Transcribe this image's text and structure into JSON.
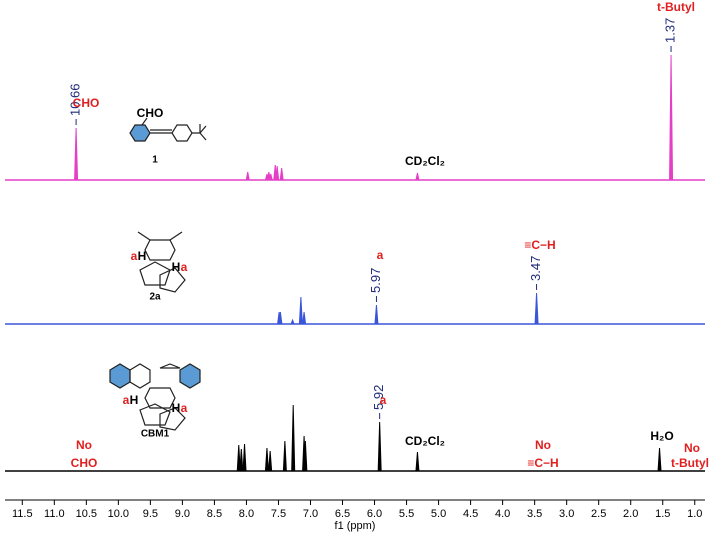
{
  "chart_data": {
    "type": "nmr",
    "xlabel": "f1 (ppm)",
    "xlim": [
      11.77,
      0.84
    ],
    "xticks": [
      11.5,
      {
        "value": 11,
        "label": "11.0"
      },
      10.5,
      {
        "value": 10,
        "label": "10.0"
      },
      9.5,
      {
        "value": 9,
        "label": "9.0"
      },
      8.5,
      {
        "value": 8,
        "label": "8.0"
      },
      7.5,
      {
        "value": 7,
        "label": "7.0"
      },
      6.5,
      {
        "value": 6,
        "label": "6.0"
      },
      5.5,
      {
        "value": 5,
        "label": "5.0"
      },
      4.5,
      {
        "value": 4,
        "label": "4.0"
      },
      3.5,
      {
        "value": 3,
        "label": "3.0"
      },
      2.5,
      {
        "value": 2,
        "label": "2.0"
      },
      1.5,
      {
        "value": 1,
        "label": "1.0"
      }
    ],
    "series": [
      {
        "name": "1",
        "color": "#e43fc6",
        "x": [
          10.66,
          7.98,
          7.68,
          7.65,
          7.62,
          7.55,
          7.52,
          7.45,
          5.33,
          1.37
        ],
        "values": [
          52,
          8,
          6,
          8,
          6,
          15,
          14,
          12,
          7,
          125
        ],
        "peak_labels": [
          10.66,
          1.37
        ],
        "annotations": [
          {
            "text": "CHO",
            "color": "#e02020"
          },
          {
            "text": "t-Butyl",
            "color": "#e02020"
          },
          {
            "text": "CD₂Cl₂",
            "color": "#000000"
          },
          {
            "text": "CHO",
            "color": "#000000"
          }
        ]
      },
      {
        "name": "2a",
        "color": "#3b55d9",
        "x": [
          7.49,
          7.47,
          7.28,
          7.15,
          7.1,
          5.97,
          3.47
        ],
        "values": [
          12,
          12,
          4,
          27,
          12,
          19,
          31
        ],
        "peak_labels": [
          5.97,
          3.47
        ],
        "annotations": [
          {
            "text": "a",
            "color": "#e02020"
          },
          {
            "text": "≡C−H",
            "color": "#e02020"
          },
          {
            "text": "a",
            "color": "#e02020"
          },
          {
            "text": "H",
            "color": "#000000"
          },
          {
            "text": "H",
            "color": "#000000"
          },
          {
            "text": "a",
            "color": "#e02020"
          }
        ]
      },
      {
        "name": "CBM1",
        "color": "#000000",
        "x": [
          8.12,
          8.08,
          8.03,
          7.68,
          7.63,
          7.4,
          7.27,
          7.1,
          7.08,
          5.92,
          5.33,
          1.55
        ],
        "values": [
          26,
          22,
          27,
          23,
          20,
          30,
          66,
          35,
          30,
          49,
          19,
          23
        ],
        "peak_labels": [
          5.92
        ],
        "annotations": [
          {
            "text": "a",
            "color": "#e02020"
          },
          {
            "text": "CD₂Cl₂",
            "color": "#000000"
          },
          {
            "text": "No",
            "color": "#e02020"
          },
          {
            "text": "CHO",
            "color": "#e02020"
          },
          {
            "text": "No",
            "color": "#e02020"
          },
          {
            "text": "≡C−H",
            "color": "#e02020"
          },
          {
            "text": "H₂O",
            "color": "#000000"
          },
          {
            "text": "No",
            "color": "#e02020"
          },
          {
            "text": "t-Butyl",
            "color": "#e02020"
          },
          {
            "text": "a",
            "color": "#e02020"
          },
          {
            "text": "H",
            "color": "#000000"
          },
          {
            "text": "H",
            "color": "#000000"
          },
          {
            "text": "a",
            "color": "#e02020"
          }
        ]
      }
    ]
  }
}
